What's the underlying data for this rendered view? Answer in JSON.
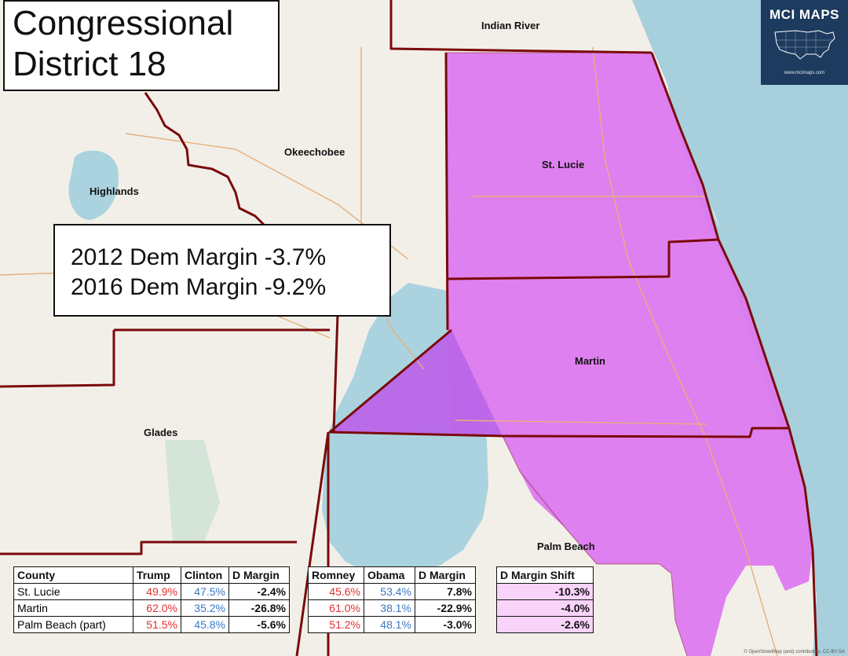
{
  "title_lines": [
    "Congressional",
    "District 18"
  ],
  "margins": [
    "2012 Dem Margin -3.7%",
    "2016 Dem Margin -9.2%"
  ],
  "logo": {
    "brand": "MCI MAPS",
    "url": "www.mcimaps.com"
  },
  "colors": {
    "district": "#dd76f0",
    "martin_west": "#bb66e8",
    "water": "#aad3df",
    "ocean": "#a7cfdc",
    "land": "#f2efe9",
    "border": "#7a0a0a"
  },
  "county_labels": [
    "Indian River",
    "Okeechobee",
    "Highlands",
    "St. Lucie",
    "Martin",
    "Glades",
    "Palm Beach"
  ],
  "attribution": "© OpenStreetMap (and) contributors, CC-BY-SA",
  "tables": {
    "t2016": {
      "headers": [
        "County",
        "Trump",
        "Clinton",
        "D Margin"
      ],
      "rows": [
        [
          "St. Lucie",
          "49.9%",
          "47.5%",
          "-2.4%"
        ],
        [
          "Martin",
          "62.0%",
          "35.2%",
          "-26.8%"
        ],
        [
          "Palm Beach (part)",
          "51.5%",
          "45.8%",
          "-5.6%"
        ]
      ]
    },
    "t2012": {
      "headers": [
        "Romney",
        "Obama",
        "D Margin"
      ],
      "rows": [
        [
          "45.6%",
          "53.4%",
          "7.8%"
        ],
        [
          "61.0%",
          "38.1%",
          "-22.9%"
        ],
        [
          "51.2%",
          "48.1%",
          "-3.0%"
        ]
      ]
    },
    "shift": {
      "header": "D Margin Shift",
      "rows": [
        "-10.3%",
        "-4.0%",
        "-2.6%"
      ]
    }
  }
}
